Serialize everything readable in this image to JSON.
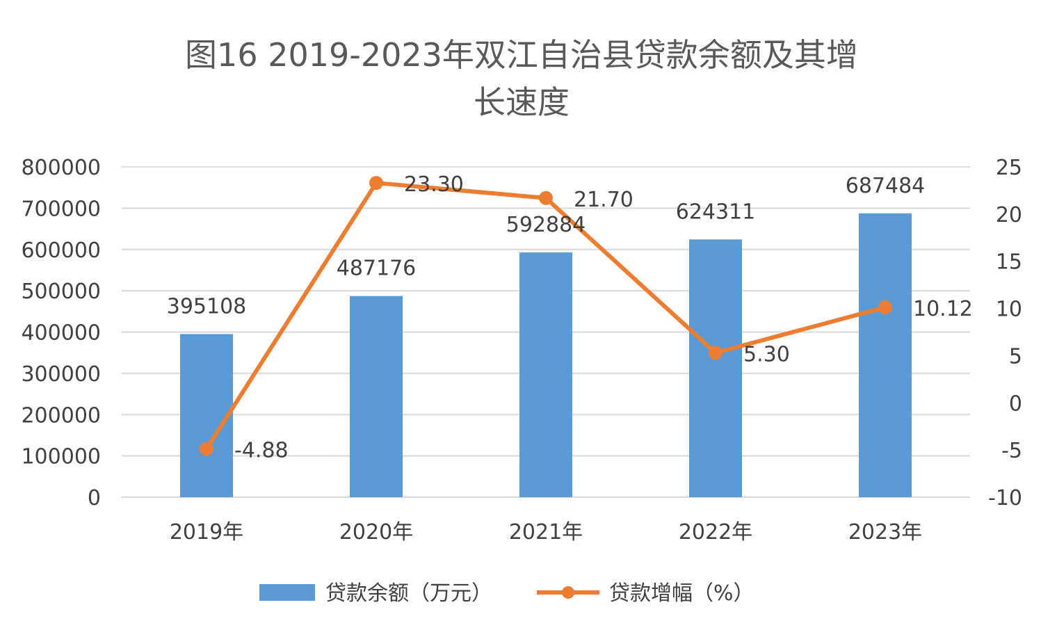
{
  "chart_data": {
    "type": "bar",
    "title_line1": "图16  2019-2023年双江自治县贷款余额及其增",
    "title_line2": "长速度",
    "categories": [
      "2019年",
      "2020年",
      "2021年",
      "2022年",
      "2023年"
    ],
    "series": [
      {
        "name": "贷款余额（万元）",
        "type": "bar",
        "axis": "left",
        "color": "#5b9bd5",
        "values": [
          395108,
          487176,
          592884,
          624311,
          687484
        ],
        "data_labels": [
          "395108",
          "487176",
          "592884",
          "624311",
          "687484"
        ]
      },
      {
        "name": "贷款增幅（%）",
        "type": "line",
        "axis": "right",
        "color": "#ed7d31",
        "marker": "circle",
        "values": [
          -4.88,
          23.3,
          21.7,
          5.3,
          10.12
        ],
        "data_labels": [
          "-4.88",
          "23.30",
          "21.70",
          "5.30",
          "10.12"
        ]
      }
    ],
    "y_left": {
      "min": 0,
      "max": 800000,
      "ticks": [
        "0",
        "100000",
        "200000",
        "300000",
        "400000",
        "500000",
        "600000",
        "700000",
        "800000"
      ]
    },
    "y_right": {
      "min": -10,
      "max": 25,
      "ticks": [
        "-10",
        "-5",
        "0",
        "5",
        "10",
        "15",
        "20",
        "25"
      ]
    },
    "grid": true,
    "legend_position": "bottom",
    "colors": {
      "grid": "#d9d9d9",
      "text": "#404040",
      "title": "#595959"
    }
  }
}
